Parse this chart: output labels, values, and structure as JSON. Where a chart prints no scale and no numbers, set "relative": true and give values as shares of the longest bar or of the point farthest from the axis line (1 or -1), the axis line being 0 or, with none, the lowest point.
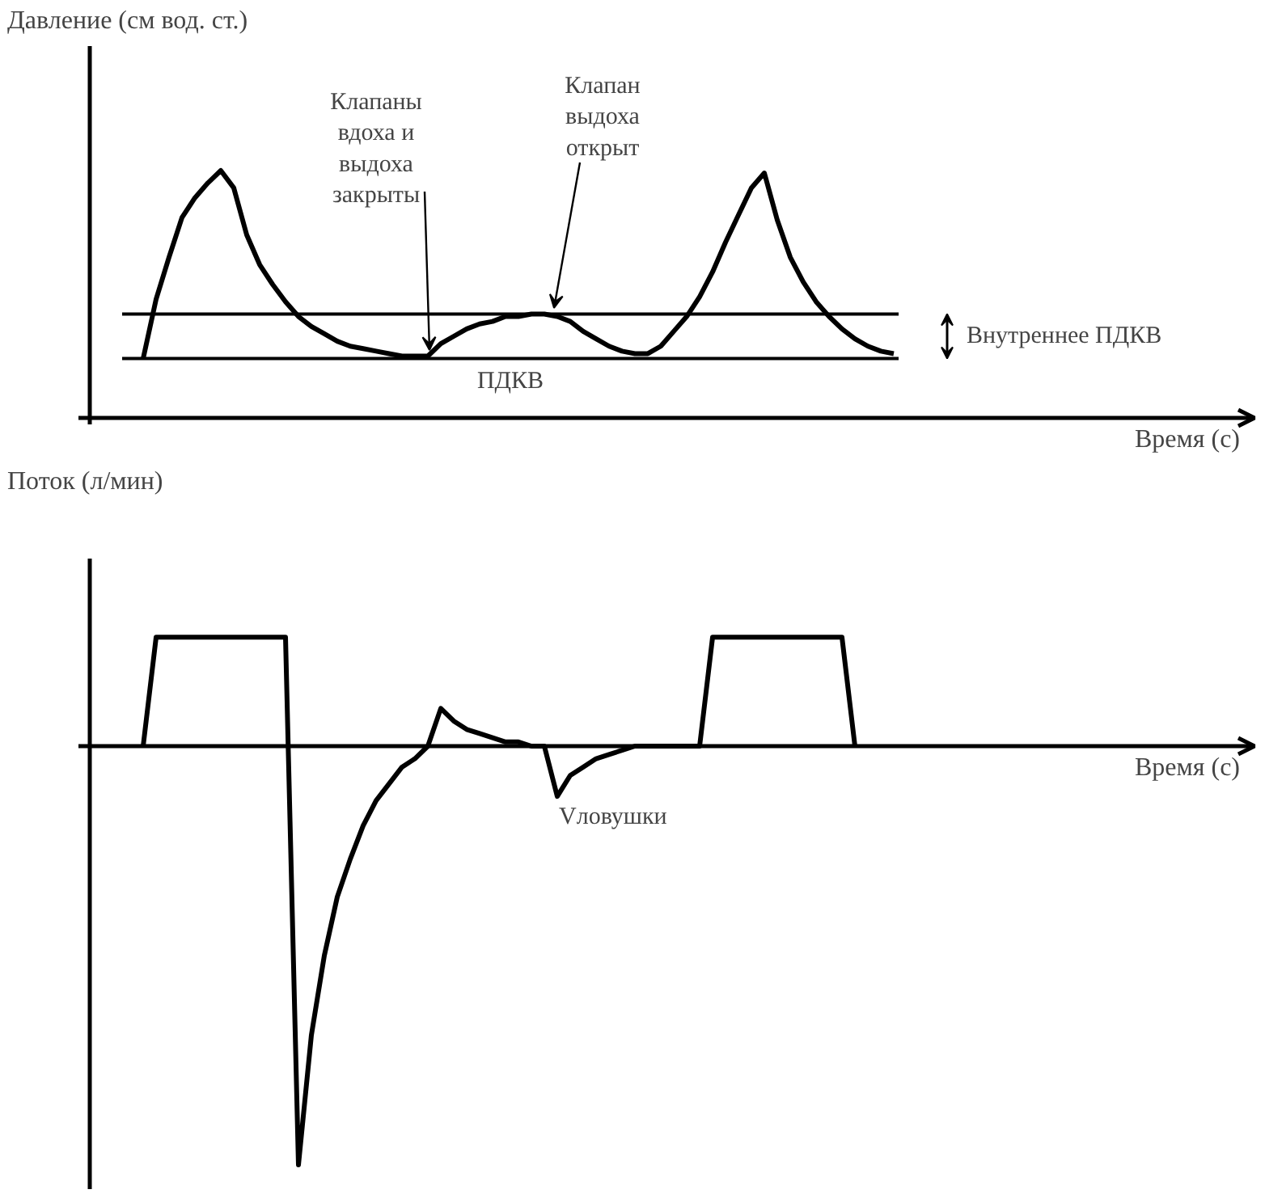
{
  "chart_data": [
    {
      "type": "line",
      "relative": true,
      "tick_labels": false,
      "ylabel": "Давление (см вод. ст.)",
      "xlabel": "Время (с)",
      "categories": [
        null,
        null,
        null,
        null,
        null,
        null,
        null,
        null,
        null,
        null,
        null,
        null,
        null,
        null,
        null,
        null,
        null,
        null,
        null,
        null,
        null,
        null,
        null,
        null,
        null,
        null,
        null,
        null,
        null,
        null,
        null,
        null,
        null,
        null,
        null,
        null,
        null,
        null,
        null,
        null,
        null,
        null,
        null,
        null,
        null,
        null,
        null,
        null,
        null,
        null,
        null,
        null,
        null,
        null,
        null,
        null,
        null,
        null,
        null,
        null,
        null,
        null,
        null,
        null,
        null,
        null,
        null,
        null,
        null,
        null,
        null,
        null,
        null,
        null,
        null,
        null,
        null,
        null,
        null,
        null,
        null,
        null,
        null,
        null,
        null,
        null,
        null,
        null,
        null,
        null
      ],
      "series": [
        {
          "color": "#000000",
          "values": [
            null,
            null,
            null,
            null,
            0.24,
            0.48,
            0.65,
            0.81,
            0.89,
            0.95,
            1.0,
            0.93,
            0.74,
            0.62,
            0.54,
            0.47,
            0.41,
            0.37,
            0.34,
            0.31,
            0.29,
            0.28,
            0.27,
            0.26,
            0.25,
            0.25,
            0.25,
            0.3,
            0.33,
            0.36,
            0.38,
            0.39,
            0.41,
            0.41,
            0.42,
            0.42,
            0.41,
            0.39,
            0.35,
            0.32,
            0.29,
            0.27,
            0.26,
            0.26,
            0.29,
            0.35,
            0.41,
            0.49,
            0.59,
            0.71,
            0.82,
            0.93,
            0.99,
            0.8,
            0.65,
            0.55,
            0.47,
            0.41,
            0.36,
            0.32,
            0.29,
            0.27,
            0.26,
            null,
            null,
            null,
            null,
            null,
            null,
            null,
            null,
            null,
            null,
            null,
            null,
            null,
            null,
            null,
            null,
            null,
            null,
            null,
            null,
            null,
            null,
            null,
            null,
            null,
            null,
            null
          ]
        }
      ],
      "ref_lines": [
        {
          "axis": "y",
          "value": 0.24,
          "label": "ПДКВ"
        },
        {
          "axis": "y",
          "value": 0.42,
          "label": "Внутреннее ПДКВ"
        }
      ],
      "annotations": [
        "Клапаны вдоха и выдоха закрыты",
        "Клапан выдоха открыт"
      ]
    },
    {
      "type": "line",
      "relative": true,
      "tick_labels": false,
      "ylabel": "Поток (л/мин)",
      "xlabel": "Время (с)",
      "categories": [
        null,
        null,
        null,
        null,
        null,
        null,
        null,
        null,
        null,
        null,
        null,
        null,
        null,
        null,
        null,
        null,
        null,
        null,
        null,
        null,
        null,
        null,
        null,
        null,
        null,
        null,
        null,
        null,
        null,
        null,
        null,
        null,
        null,
        null,
        null,
        null,
        null,
        null,
        null,
        null,
        null,
        null,
        null,
        null,
        null,
        null,
        null,
        null,
        null,
        null,
        null,
        null,
        null,
        null,
        null,
        null,
        null,
        null,
        null,
        null,
        null,
        null,
        null,
        null,
        null,
        null,
        null,
        null,
        null,
        null,
        null,
        null,
        null,
        null,
        null,
        null,
        null,
        null,
        null,
        null,
        null,
        null,
        null,
        null,
        null,
        null,
        null,
        null,
        null,
        null
      ],
      "series": [
        {
          "color": "#000000",
          "values": [
            null,
            null,
            null,
            null,
            0,
            0.26,
            0.26,
            0.26,
            0.26,
            0.26,
            0.26,
            0.26,
            0.26,
            0.26,
            0.26,
            0.26,
            -1,
            -0.69,
            -0.5,
            -0.36,
            -0.27,
            -0.19,
            -0.13,
            -0.09,
            -0.05,
            -0.03,
            0,
            0.09,
            0.06,
            0.04,
            0.03,
            0.02,
            0.01,
            0.01,
            0,
            0,
            -0.12,
            -0.07,
            -0.05,
            -0.03,
            -0.02,
            -0.01,
            0,
            0,
            0,
            0,
            0,
            0,
            0.26,
            0.26,
            0.26,
            0.26,
            0.26,
            0.26,
            0.26,
            0.26,
            0.26,
            0.26,
            0.26,
            0,
            null,
            null,
            null,
            null,
            null,
            null,
            null,
            null,
            null,
            null,
            null,
            null,
            null,
            null,
            null,
            null,
            null,
            null,
            null,
            null,
            null,
            null,
            null,
            null,
            null,
            null,
            null,
            null,
            null,
            null
          ]
        }
      ],
      "annotations": [
        "Vловушки"
      ]
    }
  ]
}
